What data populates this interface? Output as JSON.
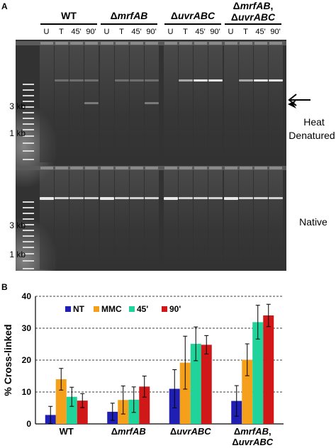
{
  "panel_a": {
    "letter": "A",
    "strains": [
      {
        "label": "WT",
        "italic": false
      },
      {
        "label": "ΔmrfAB",
        "italic": true
      },
      {
        "label": "ΔuvrABC",
        "italic": true
      },
      {
        "label": "ΔmrfAB, ΔuvrABC",
        "line1": "ΔmrfAB,",
        "line2": "ΔuvrABC",
        "italic": true
      }
    ],
    "lanes": [
      "U",
      "T",
      "45'",
      "90'"
    ],
    "size_markers_top": [
      "3 kb",
      "1 kb"
    ],
    "size_markers_bottom": [
      "3 kb",
      "1 kb"
    ],
    "label_heat": [
      "Heat",
      "Denatured"
    ],
    "label_native": "Native"
  },
  "panel_b": {
    "letter": "B"
  },
  "chart_data": {
    "type": "bar",
    "categories": [
      "WT",
      "ΔmrfAB",
      "ΔuvrABC",
      "ΔmrfAB, ΔuvrABC"
    ],
    "category_line2": [
      "",
      "",
      "",
      "ΔuvrABC"
    ],
    "category_line1": [
      "WT",
      "ΔmrfAB",
      "ΔuvrABC",
      "ΔmrfAB,"
    ],
    "series": [
      {
        "name": "NT",
        "color": "#1f1fb4",
        "values": [
          2.8,
          3.8,
          11.0,
          7.2
        ],
        "errors": [
          2.7,
          2.7,
          6.0,
          4.8
        ]
      },
      {
        "name": "MMC",
        "color": "#f5a01a",
        "values": [
          14.0,
          7.5,
          19.2,
          20.1
        ],
        "errors": [
          3.4,
          4.4,
          8.3,
          5.0
        ]
      },
      {
        "name": "45'",
        "color": "#1fd39a",
        "values": [
          8.5,
          7.6,
          25.1,
          31.9
        ],
        "errors": [
          3.0,
          4.0,
          5.3,
          5.3
        ]
      },
      {
        "name": "90'",
        "color": "#d01818",
        "values": [
          7.3,
          11.7,
          24.8,
          34.0
        ],
        "errors": [
          2.2,
          3.3,
          2.9,
          3.5
        ]
      }
    ],
    "ylabel": "% Cross-linked",
    "ylim": [
      0,
      40
    ],
    "yticks": [
      0,
      10,
      20,
      30,
      40
    ],
    "grid": true,
    "legend_position": "top-left"
  }
}
